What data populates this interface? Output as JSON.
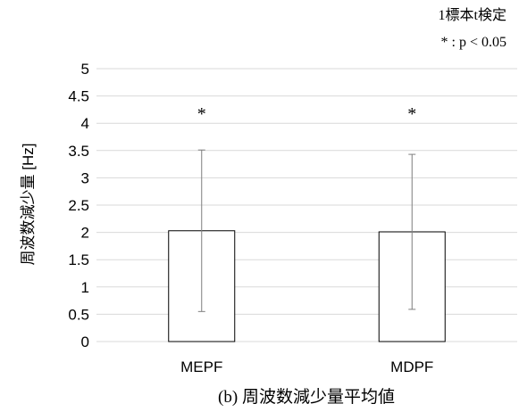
{
  "chart_data": {
    "type": "bar",
    "categories": [
      "MEPF",
      "MDPF"
    ],
    "values": [
      2.03,
      2.01
    ],
    "error_bars": [
      1.48,
      1.42
    ],
    "significance_markers": [
      "*",
      "*"
    ],
    "ylabel": "周波数減少量 [Hz]",
    "ylim": [
      0,
      5
    ],
    "yticks": [
      "0",
      "0.5",
      "1",
      "1.5",
      "2",
      "2.5",
      "3",
      "3.5",
      "4",
      "4.5",
      "5"
    ],
    "grid": true,
    "bar_fill": "#ffffff",
    "bar_stroke": "#000000",
    "grid_color": "#d9d9d9",
    "annotation_line1": "1標本t検定",
    "annotation_line2": "* : p < 0.05",
    "caption": "(b)  周波数減少量平均値"
  }
}
